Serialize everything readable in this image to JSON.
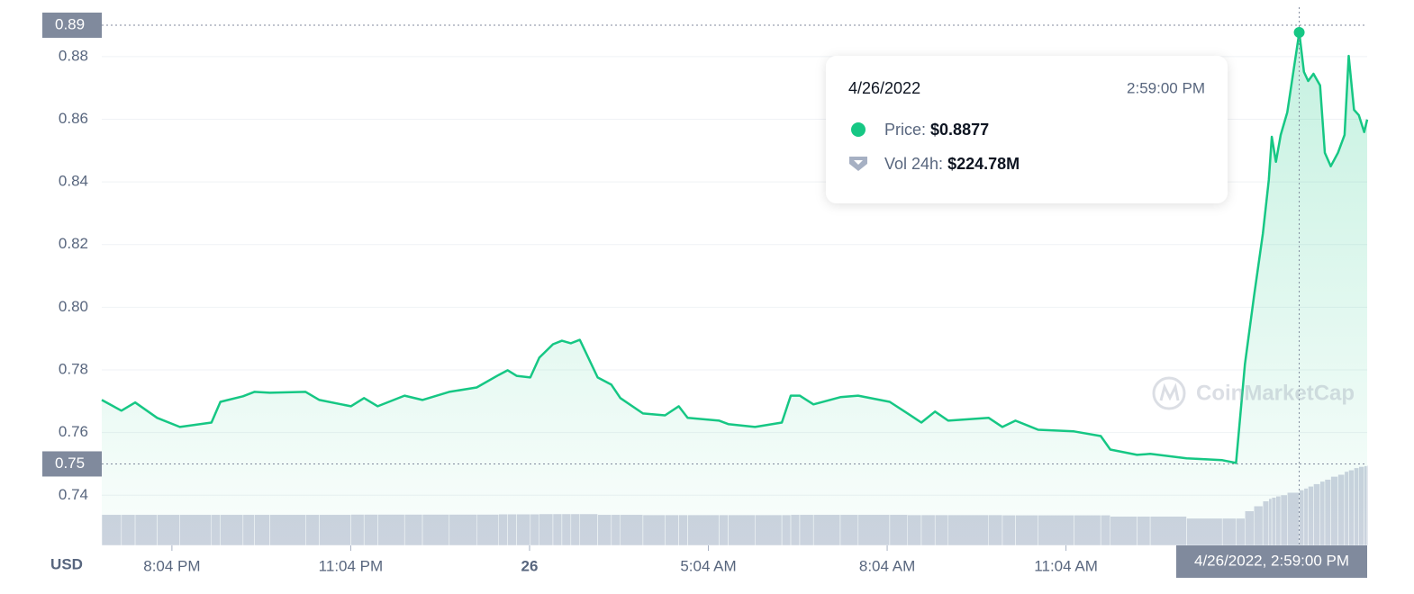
{
  "chart_data": {
    "type": "area",
    "currency": "USD",
    "watermark": "CoinMarketCap",
    "x": [
      18.89,
      19.22,
      19.45,
      19.82,
      20.2,
      20.73,
      20.88,
      21.26,
      21.45,
      21.71,
      22.31,
      22.54,
      23.07,
      23.29,
      23.52,
      23.97,
      24.27,
      24.72,
      25.18,
      25.55,
      25.7,
      25.85,
      26.08,
      26.23,
      26.46,
      26.61,
      26.76,
      26.91,
      27.21,
      27.44,
      27.59,
      27.97,
      28.34,
      28.57,
      28.72,
      29.25,
      29.4,
      29.85,
      30.3,
      30.45,
      30.6,
      30.83,
      31.28,
      31.58,
      32.11,
      32.41,
      32.64,
      32.87,
      33.09,
      33.77,
      34.0,
      34.22,
      34.6,
      35.2,
      35.65,
      35.81,
      36.26,
      36.48,
      37.09,
      37.69,
      37.92,
      38.07,
      38.22,
      38.37,
      38.47,
      38.52,
      38.59,
      38.67,
      38.78,
      38.98,
      39.06,
      39.13,
      39.22,
      39.33,
      39.41,
      39.51,
      39.63,
      39.74,
      39.81,
      39.9,
      39.98,
      40.07,
      40.12
    ],
    "series": [
      {
        "color": "#16c784",
        "values": [
          0.7704,
          0.767,
          0.7696,
          0.7647,
          0.7618,
          0.7632,
          0.7698,
          0.7716,
          0.773,
          0.7727,
          0.773,
          0.7704,
          0.7684,
          0.771,
          0.7684,
          0.7718,
          0.7704,
          0.773,
          0.7744,
          0.7784,
          0.7799,
          0.7781,
          0.7776,
          0.7839,
          0.7882,
          0.7893,
          0.7885,
          0.7896,
          0.7776,
          0.7753,
          0.771,
          0.7661,
          0.7655,
          0.7684,
          0.7647,
          0.7638,
          0.7627,
          0.7618,
          0.7632,
          0.7718,
          0.7718,
          0.769,
          0.7713,
          0.7718,
          0.7698,
          0.7661,
          0.7632,
          0.7667,
          0.7638,
          0.7647,
          0.7618,
          0.7638,
          0.7609,
          0.7604,
          0.7589,
          0.7546,
          0.7529,
          0.7532,
          0.7518,
          0.7512,
          0.7503,
          0.7819,
          0.8034,
          0.8235,
          0.8407,
          0.8544,
          0.8464,
          0.855,
          0.8622,
          0.8877,
          0.8751,
          0.8722,
          0.8745,
          0.8708,
          0.8493,
          0.845,
          0.8493,
          0.855,
          0.8802,
          0.863,
          0.8613,
          0.8559,
          0.8599
        ]
      },
      {
        "color": "#cfd3e0",
        "axis": "y2",
        "values": [
          125,
          125,
          125,
          125,
          125,
          125,
          125,
          125,
          125,
          125,
          125,
          125,
          126,
          126,
          126,
          126,
          126,
          126,
          126,
          127,
          127,
          127,
          127,
          128,
          128,
          128,
          128,
          128,
          125,
          125,
          125,
          124,
          124,
          124,
          124,
          124,
          124,
          124,
          124,
          125,
          125,
          125,
          125,
          125,
          125,
          124,
          124,
          124,
          124,
          124,
          123,
          123,
          123,
          123,
          123,
          118,
          118,
          118,
          110,
          110,
          110,
          140,
          160,
          180,
          190,
          195,
          200,
          205,
          215,
          225,
          232,
          240,
          250,
          260,
          268,
          280,
          288,
          300,
          306,
          315,
          320,
          323,
          325
        ]
      }
    ],
    "xlim": [
      18.89,
      40.12
    ],
    "xticks": [
      {
        "value": 20.067,
        "label": "8:04 PM"
      },
      {
        "value": 23.067,
        "label": "11:04 PM"
      },
      {
        "value": 26.067,
        "label": "26"
      },
      {
        "value": 29.067,
        "label": "5:04 AM"
      },
      {
        "value": 32.067,
        "label": "8:04 AM"
      },
      {
        "value": 35.067,
        "label": "11:04 AM"
      }
    ],
    "ylim": [
      0.724,
      0.89
    ],
    "yticks": [
      0.74,
      0.76,
      0.78,
      {
        "value": 0.8,
        "label": "0.80"
      },
      0.82,
      0.84,
      0.86,
      0.88
    ],
    "y2lim": [
      0,
      340
    ],
    "max_marker": 0.89,
    "min_marker": 0.75,
    "grid": true,
    "crosshair": {
      "x": 38.98,
      "label": "4/26/2022, 2:59:00 PM"
    },
    "tooltip": {
      "date": "4/26/2022",
      "time": "2:59:00 PM",
      "entries": [
        {
          "label": "Price:",
          "value": "$0.8877"
        },
        {
          "label": "Vol 24h:",
          "value": "$224.78M"
        }
      ]
    }
  }
}
